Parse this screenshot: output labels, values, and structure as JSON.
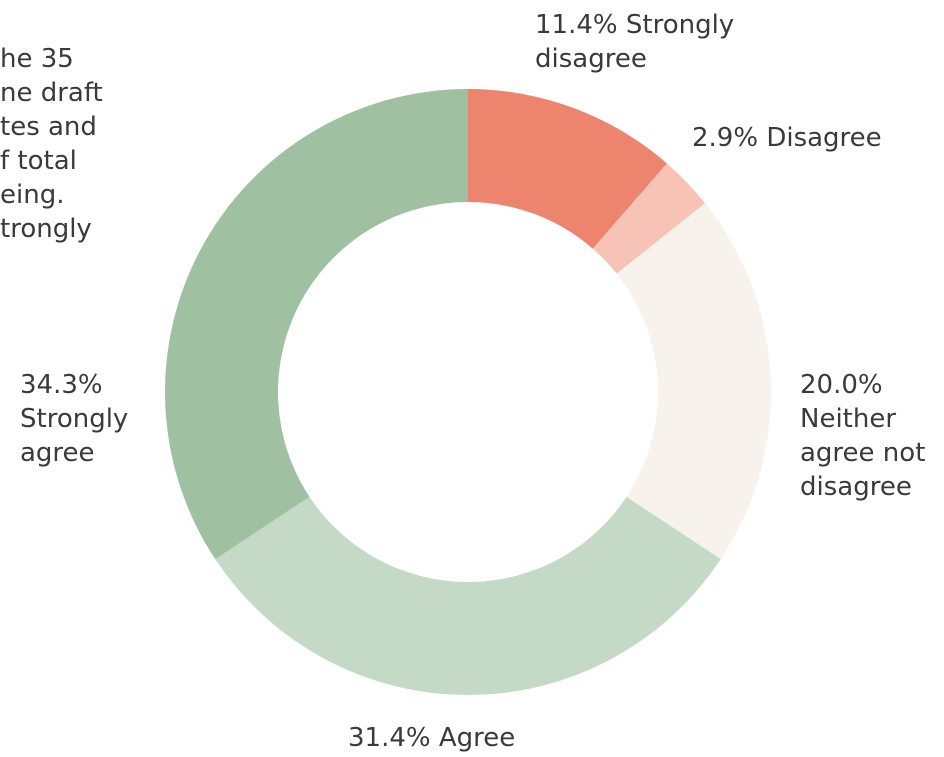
{
  "chart_data": {
    "type": "donut",
    "annotation_lines": [
      "he 35",
      "ne draft",
      "tes and",
      "f total",
      "eing.",
      "trongly"
    ],
    "categories": [
      "Strongly disagree",
      "Disagree",
      "Neither agree not disagree",
      "Agree",
      "Strongly agree"
    ],
    "values": [
      11.4,
      2.9,
      20.0,
      31.4,
      34.3
    ],
    "value_labels": [
      "11.4%",
      "2.9%",
      "20.0%",
      "31.4%",
      "34.3%"
    ],
    "colors": [
      "#ec846e",
      "#f6c3b6",
      "#f8f2ec",
      "#c5dac6",
      "#a0c0a2"
    ]
  }
}
